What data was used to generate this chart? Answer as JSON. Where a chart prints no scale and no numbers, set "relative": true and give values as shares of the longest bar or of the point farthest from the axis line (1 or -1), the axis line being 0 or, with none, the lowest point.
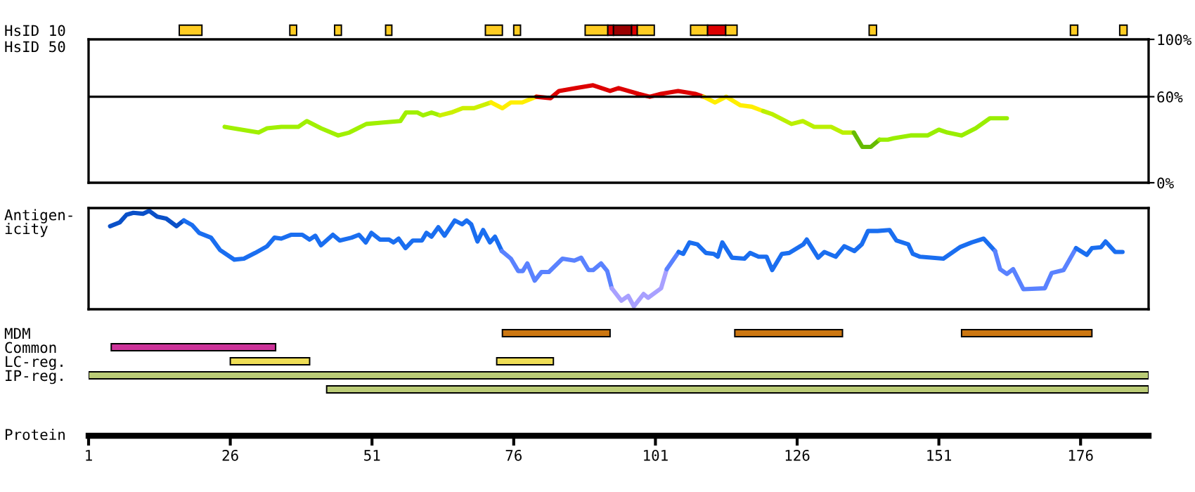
{
  "chart_data": [
    {
      "type": "bar",
      "orientation": "horizontal",
      "categories": [
        "HsID 10"
      ],
      "xlim": [
        1,
        188
      ],
      "tick_labels": "y",
      "series": [
        {
          "color": "#ffcc22",
          "base": [
            17
          ],
          "values": [
            4
          ]
        },
        {
          "color": "#ffcc22",
          "base": [
            36.5
          ],
          "values": [
            1.2
          ]
        },
        {
          "color": "#ffcc22",
          "base": [
            44.4
          ],
          "values": [
            1.2
          ]
        },
        {
          "color": "#ffcc22",
          "base": [
            53.4
          ],
          "values": [
            1.1
          ]
        },
        {
          "color": "#ffcc22",
          "base": [
            71
          ],
          "values": [
            3
          ]
        },
        {
          "color": "#ffcc22",
          "base": [
            76
          ],
          "values": [
            1.2
          ]
        },
        {
          "color": "#ffcc22",
          "base": [
            88.6
          ],
          "values": [
            4
          ]
        },
        {
          "color": "#dd0000",
          "base": [
            92.6
          ],
          "values": [
            1
          ]
        },
        {
          "color": "#990000",
          "base": [
            93.6
          ],
          "values": [
            3.2
          ]
        },
        {
          "color": "#dd0000",
          "base": [
            96.8
          ],
          "values": [
            1
          ]
        },
        {
          "color": "#ffcc22",
          "base": [
            97.8
          ],
          "values": [
            3
          ]
        },
        {
          "color": "#ffcc22",
          "base": [
            107.2
          ],
          "values": [
            3
          ]
        },
        {
          "color": "#dd0000",
          "base": [
            110.2
          ],
          "values": [
            3.2
          ]
        },
        {
          "color": "#ffcc22",
          "base": [
            113.4
          ],
          "values": [
            2
          ]
        },
        {
          "color": "#ffcc22",
          "base": [
            138.7
          ],
          "values": [
            1.3
          ]
        },
        {
          "color": "#ffcc22",
          "base": [
            174.2
          ],
          "values": [
            1.3
          ]
        },
        {
          "color": "#ffcc22",
          "base": [
            182.9
          ],
          "values": [
            1.3
          ]
        }
      ]
    },
    {
      "type": "line",
      "ylabel": "HsID 50",
      "xlim": [
        1,
        188
      ],
      "ylim": [
        0,
        100
      ],
      "yticks": [
        {
          "value": 0,
          "label": "0%"
        },
        {
          "value": 60,
          "label": "60%"
        },
        {
          "value": 100,
          "label": "100%"
        }
      ],
      "tick_labels": "y",
      "ref_lines": [
        {
          "axis": "y",
          "value": 60,
          "color": "#000000"
        }
      ],
      "series": [
        {
          "color": "#a0f000",
          "x": [
            25,
            28,
            31,
            32.5,
            35,
            38,
            39.5,
            42,
            45,
            47,
            50,
            53,
            56,
            57,
            59,
            60,
            61.5,
            63
          ],
          "values": [
            39,
            37,
            35,
            38,
            39,
            39,
            43,
            38,
            33,
            35,
            41,
            42,
            43,
            49,
            49,
            47,
            49,
            47
          ]
        },
        {
          "color": "#ccf000",
          "x": [
            63,
            65,
            67,
            69,
            72
          ],
          "values": [
            47,
            49,
            52,
            52,
            56
          ]
        },
        {
          "color": "#ffee00",
          "x": [
            72,
            74,
            75.5,
            77.5,
            80
          ],
          "values": [
            56,
            52,
            56,
            56,
            60
          ]
        },
        {
          "color": "#dd0000",
          "x": [
            80,
            82.5,
            84,
            87,
            90,
            93,
            94.5,
            98,
            100,
            102,
            105,
            108,
            109.5
          ],
          "values": [
            60,
            59,
            64,
            66,
            68,
            64,
            66,
            62,
            60,
            62,
            64,
            62,
            60
          ]
        },
        {
          "color": "#ffee00",
          "x": [
            109.5,
            111.5,
            113.5,
            116,
            118,
            120
          ],
          "values": [
            60,
            56,
            60,
            54,
            53,
            50
          ]
        },
        {
          "color": "#bbf000",
          "x": [
            120,
            121.5,
            125,
            127,
            129,
            132,
            134,
            136
          ],
          "values": [
            50,
            48,
            41,
            43,
            39,
            39,
            35,
            35
          ]
        },
        {
          "color": "#66bb00",
          "x": [
            136,
            137.5,
            139,
            140.5
          ],
          "values": [
            35,
            25,
            25,
            30
          ]
        },
        {
          "color": "#99ee00",
          "x": [
            140.5,
            142,
            143,
            146,
            149,
            151,
            152.5,
            155,
            157.5,
            160,
            163
          ],
          "values": [
            30,
            30,
            31,
            33,
            33,
            37,
            35,
            33,
            38,
            45,
            45
          ]
        }
      ]
    },
    {
      "type": "line",
      "ylabel": "Antigen-\nicity",
      "relative": true,
      "xlim": [
        1,
        188
      ],
      "tick_labels": false,
      "series": [
        {
          "color": "#0a50c8",
          "x": [
            4.8,
            6.5,
            7.7,
            8.9,
            10.6,
            11.7,
            13.1,
            14.7,
            16.5,
            17.8
          ],
          "values": [
            0.84,
            0.88,
            0.96,
            0.98,
            0.97,
            1.0,
            0.94,
            0.92,
            0.84,
            0.9
          ]
        },
        {
          "color": "#1a6ef0",
          "x": [
            17.8,
            19.3,
            20.5,
            22.6,
            24.2,
            26.7,
            28.4,
            30.4,
            32.5,
            33.8,
            35,
            36.7,
            38.7,
            40,
            41,
            42,
            44.1,
            45.3,
            47.4,
            48.7,
            49.9,
            50.9,
            52.4,
            54,
            54.8,
            55.7,
            56.9,
            58.2,
            59.8,
            60.6,
            61.5,
            62.7,
            63.8,
            65.6,
            66.9,
            67.7,
            68.5,
            69.6,
            70.6,
            71.8,
            72.7,
            73.9
          ],
          "values": [
            0.9,
            0.85,
            0.77,
            0.72,
            0.59,
            0.49,
            0.5,
            0.56,
            0.63,
            0.72,
            0.71,
            0.75,
            0.75,
            0.7,
            0.74,
            0.64,
            0.75,
            0.69,
            0.72,
            0.75,
            0.67,
            0.77,
            0.7,
            0.7,
            0.67,
            0.71,
            0.61,
            0.69,
            0.69,
            0.77,
            0.73,
            0.83,
            0.74,
            0.9,
            0.86,
            0.9,
            0.86,
            0.68,
            0.8,
            0.67,
            0.73,
            0.58
          ]
        },
        {
          "color": "#5a82ff",
          "x": [
            73.9,
            75.5,
            76.8,
            77.6,
            78.4,
            79.7,
            80.9,
            82.2,
            84.6,
            86.7,
            87.9,
            89.2,
            90,
            91.4,
            92.5,
            93.3
          ],
          "values": [
            0.58,
            0.5,
            0.37,
            0.37,
            0.45,
            0.27,
            0.36,
            0.36,
            0.5,
            0.48,
            0.51,
            0.38,
            0.38,
            0.45,
            0.37,
            0.19
          ]
        },
        {
          "color": "#a8a0ff",
          "x": [
            93.3,
            95,
            96.2,
            97.2,
            98.9,
            99.7,
            102,
            103
          ],
          "values": [
            0.19,
            0.06,
            0.11,
            0,
            0.13,
            0.09,
            0.19,
            0.39
          ]
        },
        {
          "color": "#5a82ff",
          "x": [
            103,
            105.1
          ],
          "values": [
            0.39,
            0.57
          ]
        },
        {
          "color": "#1a6ef0",
          "x": [
            105.1,
            105.9,
            107,
            108.4,
            109.9,
            111.3,
            112,
            112.8,
            114.5,
            116.7,
            117.7,
            119.2,
            120.6,
            121.6,
            123.3,
            124.6,
            127.1,
            127.7,
            129.7,
            130.8,
            132.8,
            134.3,
            136.1,
            137.4,
            138.5,
            140.2,
            142.3,
            143.5,
            145.6,
            146.4,
            147.7,
            151.8,
            154.7,
            156.8,
            158.9,
            160.9
          ],
          "values": [
            0.57,
            0.55,
            0.67,
            0.65,
            0.56,
            0.55,
            0.52,
            0.67,
            0.51,
            0.5,
            0.56,
            0.52,
            0.52,
            0.38,
            0.55,
            0.56,
            0.65,
            0.7,
            0.51,
            0.57,
            0.52,
            0.63,
            0.58,
            0.65,
            0.79,
            0.79,
            0.8,
            0.69,
            0.65,
            0.55,
            0.52,
            0.5,
            0.62,
            0.67,
            0.71,
            0.58
          ]
        },
        {
          "color": "#5a82ff",
          "x": [
            160.9,
            161.8,
            163,
            164.1,
            165.9,
            169.7,
            170.9,
            173,
            175.2
          ],
          "values": [
            0.58,
            0.39,
            0.34,
            0.39,
            0.18,
            0.19,
            0.35,
            0.38,
            0.61
          ]
        },
        {
          "color": "#1a6ef0",
          "x": [
            175.2,
            177.1,
            178,
            179.6,
            180.4,
            182.1,
            183.4
          ],
          "values": [
            0.61,
            0.54,
            0.61,
            0.62,
            0.68,
            0.57,
            0.57
          ]
        }
      ]
    },
    {
      "type": "bar",
      "orientation": "horizontal",
      "categories": [
        "MDM",
        "Common",
        "LC-reg.",
        "IP-reg.",
        null
      ],
      "xlabel": "Protein",
      "xlim": [
        1,
        188
      ],
      "xticks": [
        1,
        26,
        51,
        76,
        101,
        126,
        151,
        176
      ],
      "series": [
        {
          "colors": [
            "#cc7711",
            "#cc3399",
            "#eedd55",
            "#bbcc77",
            "#bbcc77"
          ],
          "base": [
            74,
            5,
            26,
            1,
            43
          ],
          "values": [
            19,
            29,
            14,
            187,
            145
          ]
        },
        {
          "colors": [
            "#cc7711",
            null,
            "#eedd55",
            null,
            null
          ],
          "base": [
            115,
            null,
            73,
            null,
            null
          ],
          "values": [
            19,
            null,
            10,
            null,
            null
          ]
        },
        {
          "colors": [
            "#cc7711",
            null,
            null,
            null,
            null
          ],
          "base": [
            155,
            null,
            null,
            null,
            null
          ],
          "values": [
            23,
            null,
            null,
            null,
            null
          ]
        }
      ]
    }
  ]
}
